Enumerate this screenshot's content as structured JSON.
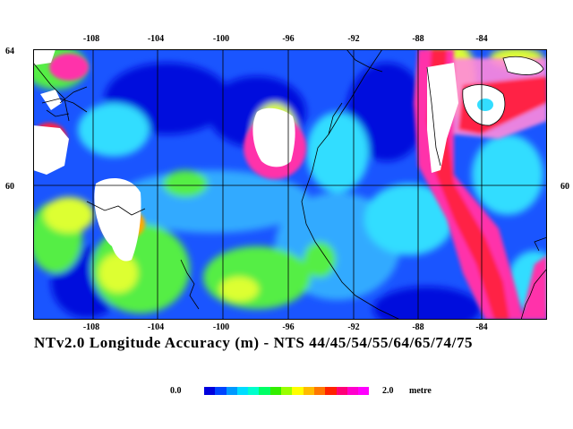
{
  "title": "NTv2.0 Longitude Accuracy (m) - NTS 44/45/54/55/64/65/74/75",
  "lon_ticks_top": [
    "-108",
    "-104",
    "-100",
    "-96",
    "-92",
    "-88",
    "-84"
  ],
  "lon_ticks_bottom": [
    "-108",
    "-104",
    "-100",
    "-96",
    "-92",
    "-88",
    "-84"
  ],
  "lat_ticks_left": [
    "64",
    "60"
  ],
  "lat_ticks_right": [
    "60"
  ],
  "legend": {
    "min_label": "0.0",
    "max_label": "2.0",
    "unit": "metre",
    "colors": [
      "#0000dd",
      "#0044ff",
      "#0099ff",
      "#00ddff",
      "#00ffcc",
      "#00ff66",
      "#33ee00",
      "#99ff00",
      "#ffff00",
      "#ffbb00",
      "#ff7700",
      "#ff2200",
      "#ff0077",
      "#ff00cc",
      "#ff00ff"
    ]
  },
  "map_colors": {
    "water_base": "#1a55ff",
    "deep_blue": "#0010dd",
    "cyan": "#33ddff",
    "light_blue": "#33aaff",
    "green": "#55ee44",
    "yellow": "#ddff33",
    "orange": "#ffaa00",
    "red": "#ff2244",
    "magenta": "#ff33aa",
    "pink": "#ff88dd",
    "white": "#ffffff",
    "grid": "#000000"
  }
}
